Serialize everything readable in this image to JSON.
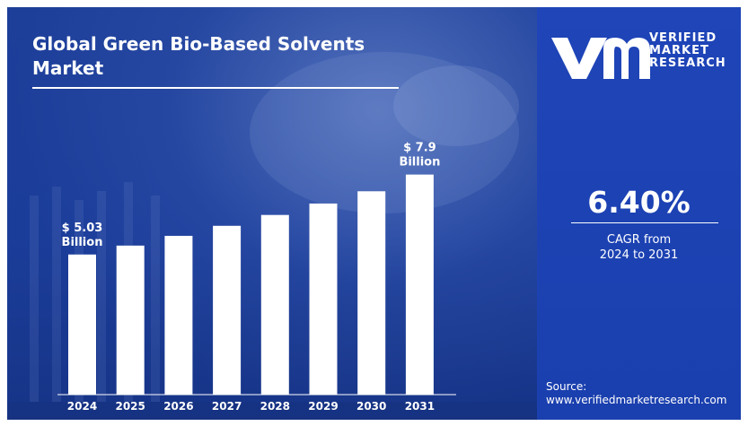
{
  "title_line1": "Global Green Bio-Based Solvents",
  "title_line2": "Market",
  "logo": {
    "line1": "VERIFIED",
    "line2": "MARKET",
    "line3": "RESEARCH"
  },
  "cagr": {
    "value": "6.40%",
    "label_line1": "CAGR from",
    "label_line2": "2024 to 2031"
  },
  "source": {
    "label": "Source:",
    "url": "www.verifiedmarketresearch.com"
  },
  "colors": {
    "background": "#1b3d9a",
    "side_panel": "#1d43b4",
    "bars": "#ffffff",
    "text": "#ffffff"
  },
  "chart_data": {
    "type": "bar",
    "categories": [
      "2024",
      "2025",
      "2026",
      "2027",
      "2028",
      "2029",
      "2030",
      "2031"
    ],
    "values": [
      5.03,
      5.35,
      5.7,
      6.06,
      6.45,
      6.86,
      7.3,
      7.9
    ],
    "ylim": [
      0,
      8.5
    ],
    "units": "Billion USD",
    "grid": false,
    "data_labels": [
      {
        "index": 0,
        "line1": "$ 5.03",
        "line2": "Billion"
      },
      {
        "index": 7,
        "line1": "$ 7.9",
        "line2": "Billion"
      }
    ]
  }
}
